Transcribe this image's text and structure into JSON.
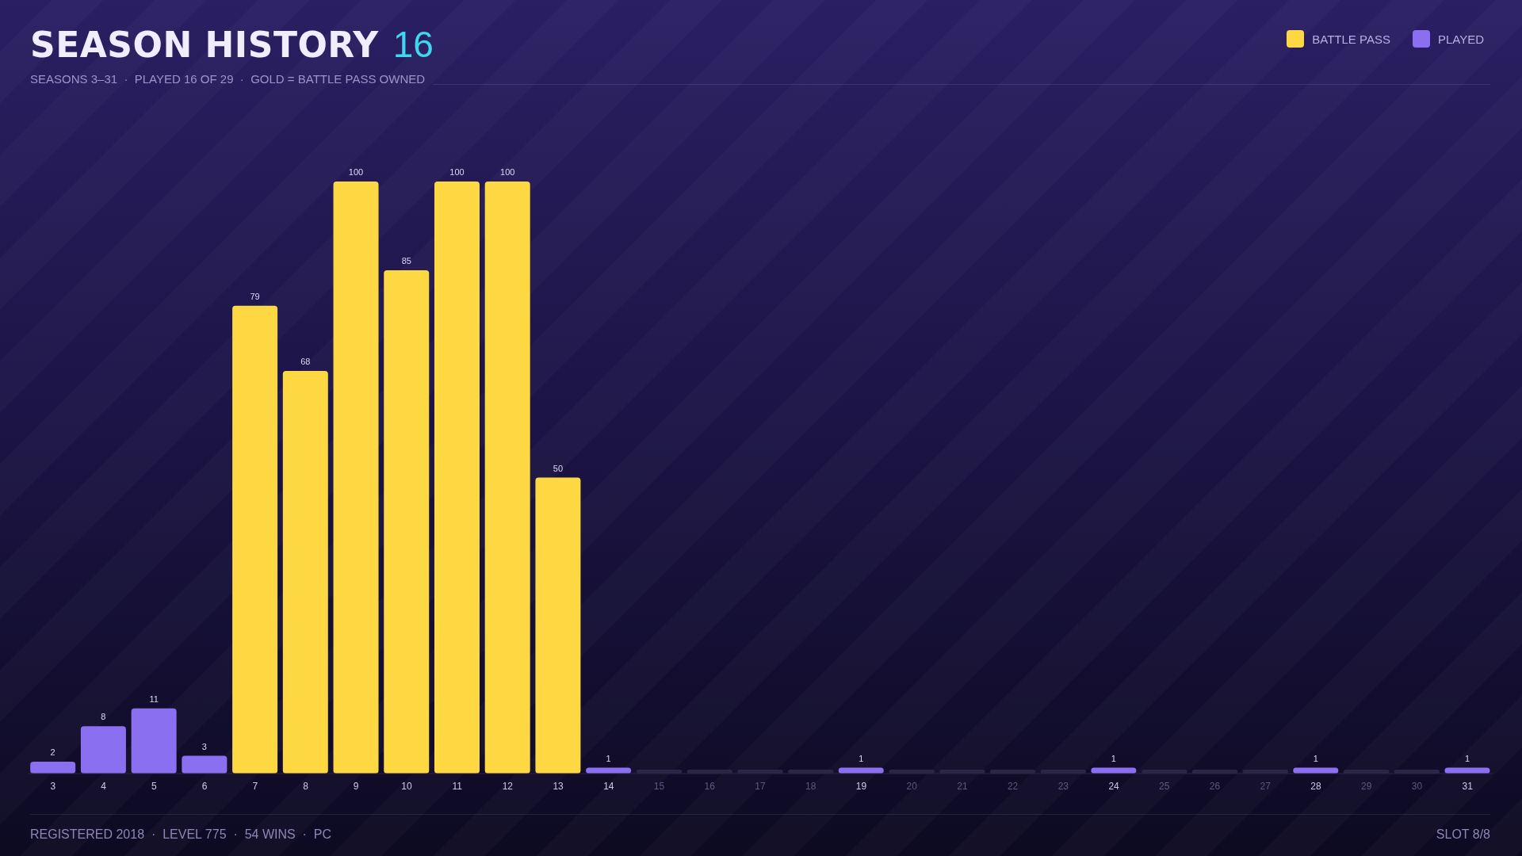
{
  "chart_data": {
    "type": "bar",
    "title": "SEASON HISTORY",
    "subtitle": "SEASONS 3–31  ·  PLAYED 16 OF 29  ·  GOLD = BATTLE PASS OWNED",
    "annotations": [
      "16",
      "REGISTERED 2018  ·  LEVEL 775  ·  54 WINS  ·  PC",
      "SLOT 8/8"
    ],
    "categories": [
      "3",
      "4",
      "5",
      "6",
      "7",
      "8",
      "9",
      "10",
      "11",
      "12",
      "13",
      "14",
      "15",
      "16",
      "17",
      "18",
      "19",
      "20",
      "21",
      "22",
      "23",
      "24",
      "25",
      "26",
      "27",
      "28",
      "29",
      "30",
      "31"
    ],
    "stacked": true,
    "data_labels": true,
    "legend": "top right",
    "series": [
      {
        "name": "BATTLE PASS",
        "color": "#fdd843",
        "values": [
          null,
          null,
          null,
          null,
          79,
          68,
          100,
          85,
          100,
          100,
          50,
          null,
          null,
          null,
          null,
          null,
          null,
          null,
          null,
          null,
          null,
          null,
          null,
          null,
          null,
          null,
          null,
          null,
          null
        ]
      },
      {
        "name": "PLAYED",
        "color": "#8a6ff0",
        "values": [
          2,
          8,
          11,
          3,
          null,
          null,
          null,
          null,
          null,
          null,
          null,
          1,
          null,
          null,
          null,
          null,
          1,
          null,
          null,
          null,
          null,
          1,
          null,
          null,
          null,
          1,
          null,
          null,
          1
        ]
      }
    ]
  }
}
